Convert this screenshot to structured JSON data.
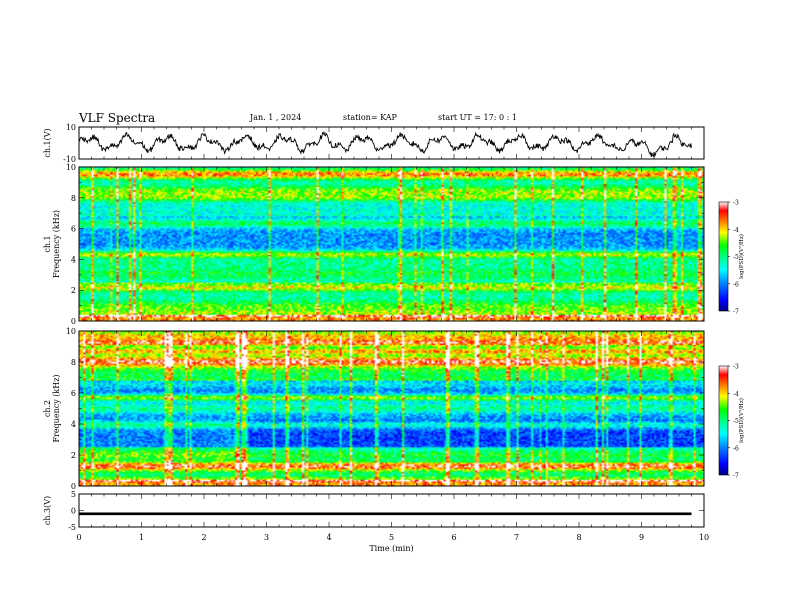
{
  "header": {
    "title": "VLF Spectra",
    "date": "Jan. 1 , 2024",
    "station": "station= KAP",
    "start": "start UT = 17: 0 : 1"
  },
  "colors": {
    "colormap": [
      "#000080",
      "#0000ff",
      "#0080ff",
      "#00ffff",
      "#00ff80",
      "#00ff00",
      "#ffff00",
      "#ff8000",
      "#ff0000",
      "#ffffff"
    ]
  },
  "chart_data": [
    {
      "type": "line",
      "ylabel": "ch.1(V)",
      "ylim": [
        -10,
        10
      ],
      "yticks": [
        "10",
        "-10"
      ],
      "xlim": [
        0,
        10
      ],
      "description": "waveform oscillating roughly between -6 and 6 V"
    },
    {
      "type": "heatmap",
      "ylabel_top": "ch.1",
      "ylabel": "Frequency (kHz)",
      "xlim": [
        0,
        10
      ],
      "ylim": [
        0,
        10
      ],
      "yticks": [
        "0",
        "2",
        "4",
        "6",
        "8",
        "10"
      ],
      "colorbar": {
        "label": "log(PSD)(V²/Hz)",
        "ticks": [
          "-3",
          "-4",
          "-5",
          "-6",
          "-7"
        ],
        "range": [
          -7,
          -3
        ]
      }
    },
    {
      "type": "heatmap",
      "ylabel_top": "ch.2",
      "ylabel": "Frequency (kHz)",
      "xlim": [
        0,
        10
      ],
      "ylim": [
        0,
        10
      ],
      "yticks": [
        "0",
        "2",
        "4",
        "6",
        "8",
        "10"
      ],
      "colorbar": {
        "label": "log(PSD)(V²/Hz)",
        "ticks": [
          "-3",
          "-4",
          "-5",
          "-6",
          "-7"
        ],
        "range": [
          -7,
          -3
        ]
      }
    },
    {
      "type": "line",
      "ylabel": "ch.3(V)",
      "ylim": [
        -5,
        5
      ],
      "yticks": [
        "5",
        "0",
        "-5"
      ],
      "xlim": [
        0,
        10
      ],
      "description": "flat thick trace near -1 V"
    }
  ],
  "xaxis": {
    "label": "Time (min)",
    "ticks": [
      "0",
      "1",
      "2",
      "3",
      "4",
      "5",
      "6",
      "7",
      "8",
      "9",
      "10"
    ]
  }
}
